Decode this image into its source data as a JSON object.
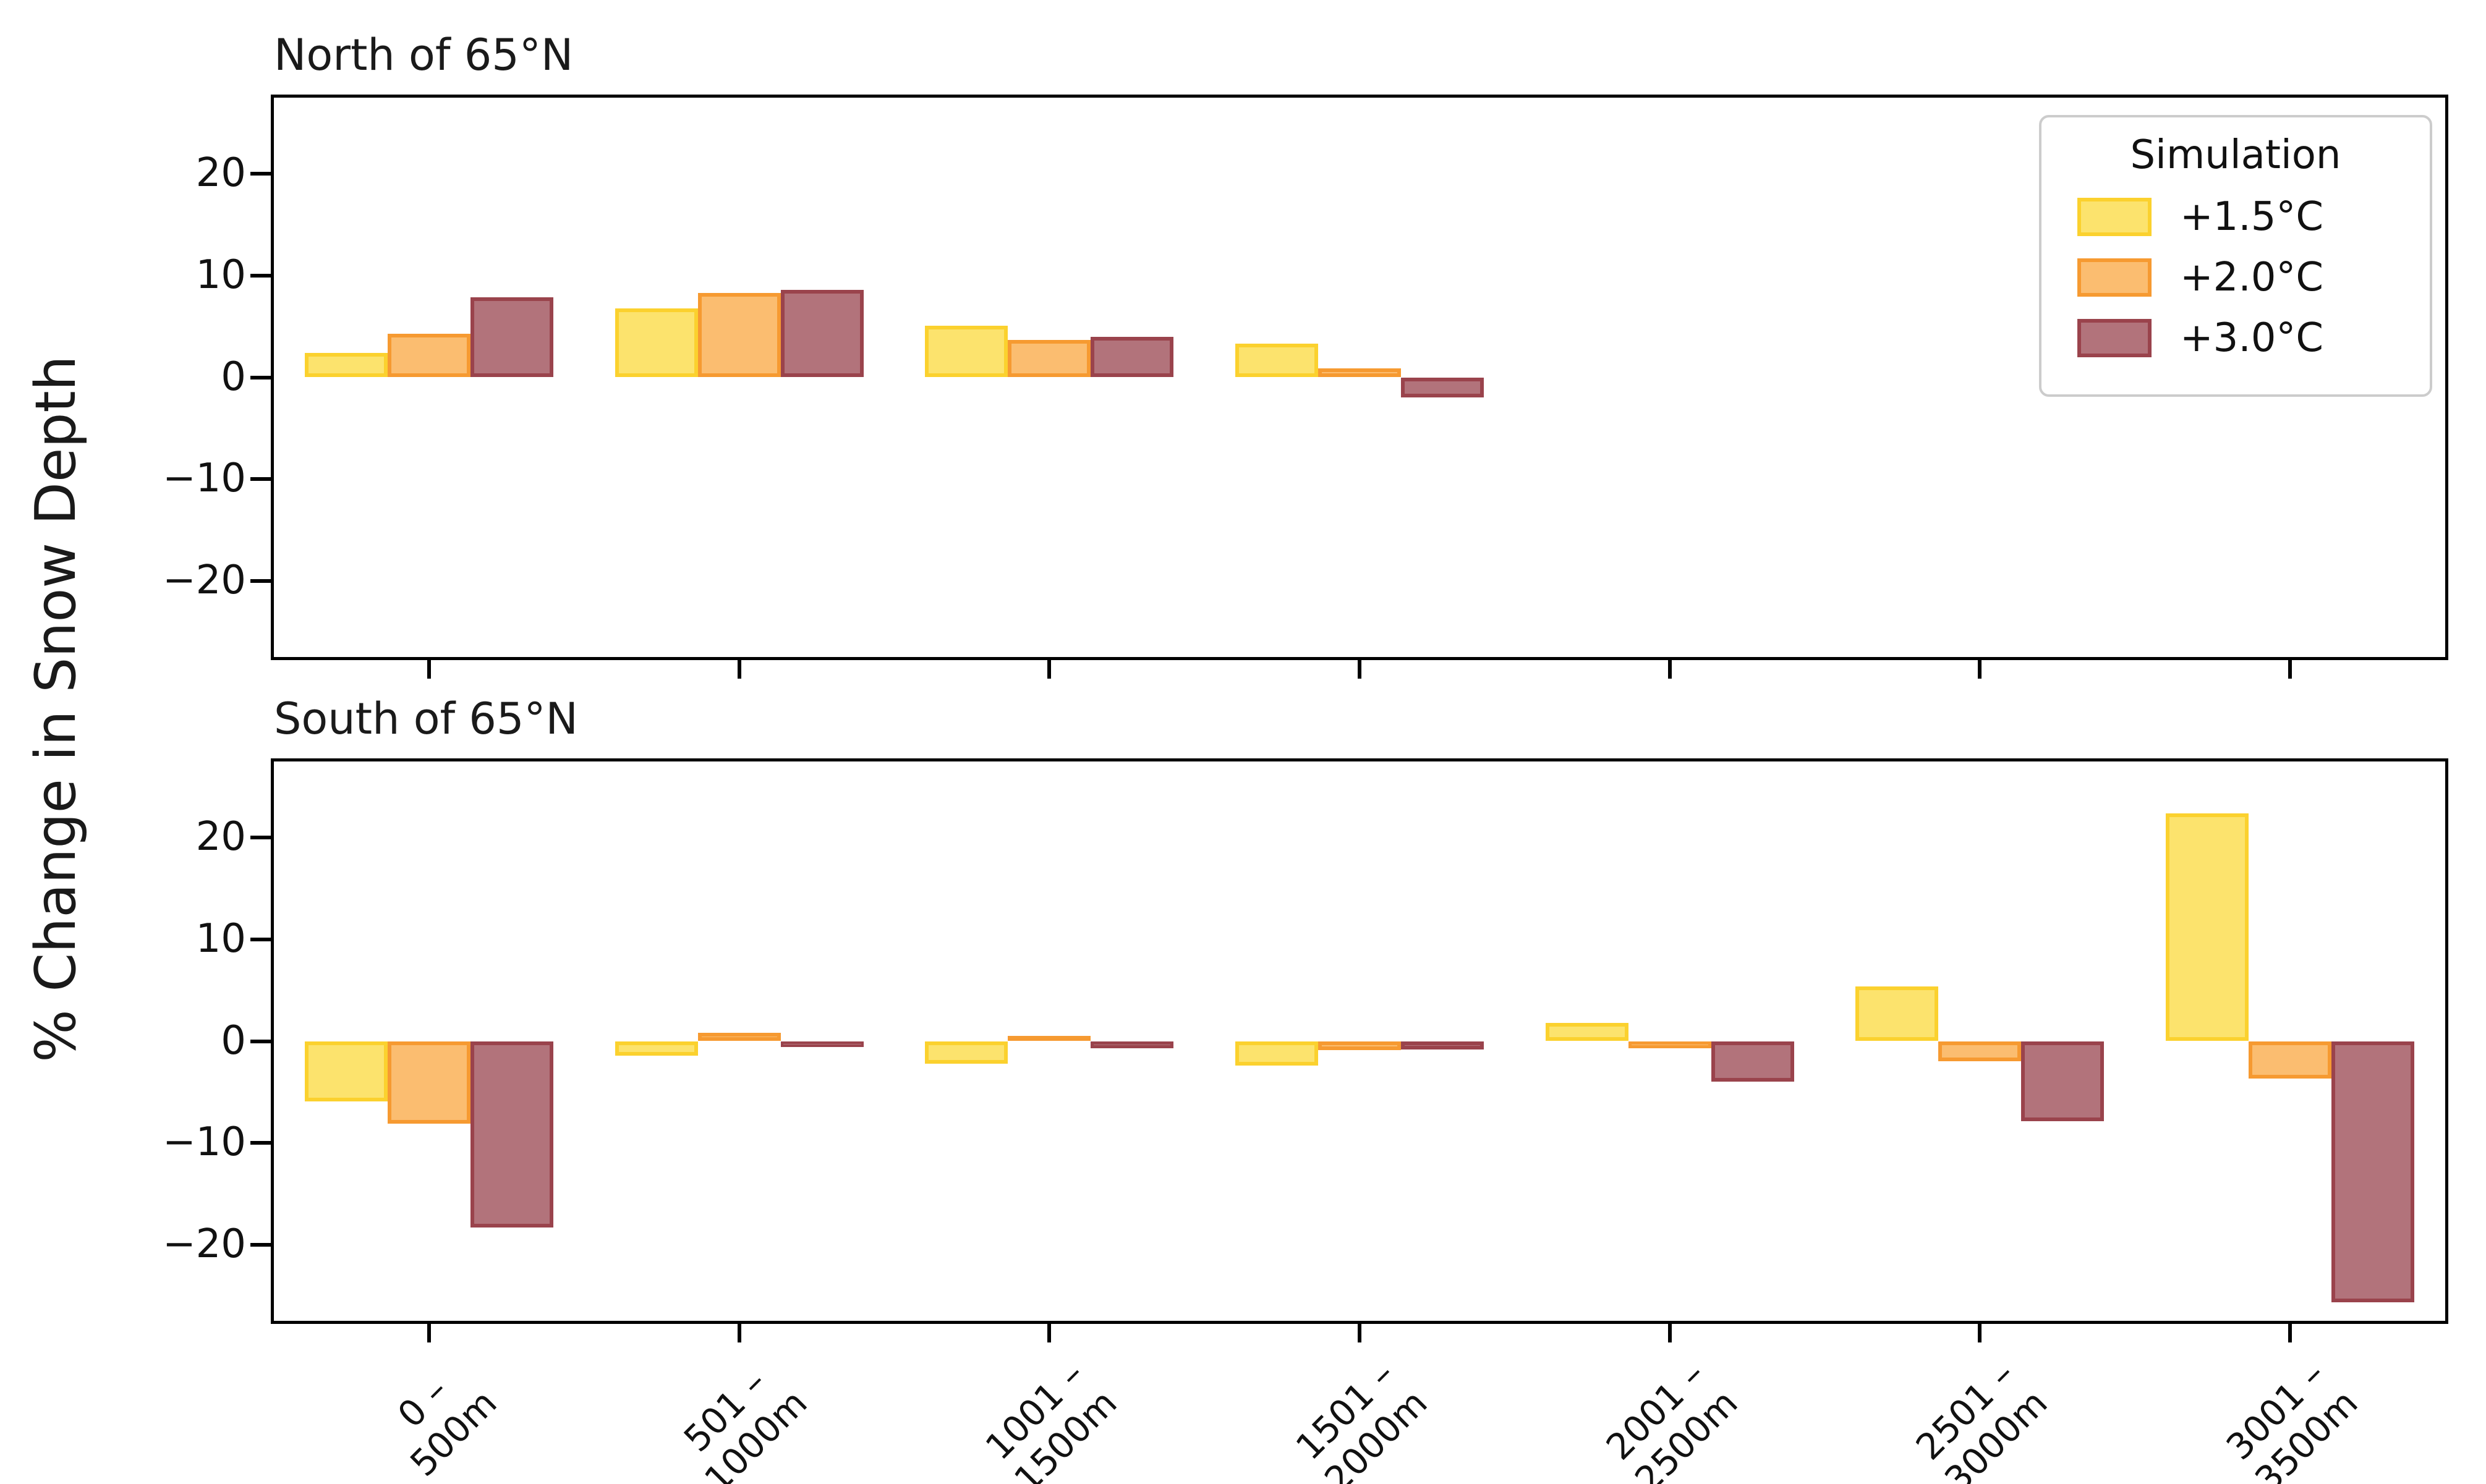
{
  "figure": {
    "ylabel": "% Change in Snow Depth"
  },
  "legend": {
    "title": "Simulation",
    "position": "upper right",
    "entries": [
      {
        "label": "+1.5°C",
        "fill": "#FCE36D",
        "edge": "#FBD12E"
      },
      {
        "label": "+2.0°C",
        "fill": "#FBBD70",
        "edge": "#F69A31"
      },
      {
        "label": "+3.0°C",
        "fill": "#B2737B",
        "edge": "#9A434C"
      }
    ]
  },
  "axes": {
    "yticks": [
      20,
      10,
      0,
      -10,
      -20
    ],
    "yticklabels": [
      "20",
      "10",
      "0",
      "−10",
      "−20"
    ],
    "xticklabels": [
      "0 –\n500m",
      "501 –\n1000m",
      "1001 –\n1500m",
      "1501 –\n2000m",
      "2001 –\n2500m",
      "2501 –\n3000m",
      "3001 –\n3500m"
    ]
  },
  "chart_data": [
    {
      "type": "bar",
      "title": "North of 65°N",
      "categories": [
        "0 – 500m",
        "501 – 1000m",
        "1001 – 1500m",
        "1501 – 2000m",
        "2001 – 2500m",
        "2501 – 3000m",
        "3001 – 3500m"
      ],
      "series": [
        {
          "name": "+1.5°C",
          "values": [
            2.4,
            6.8,
            5.1,
            3.3,
            null,
            null,
            null
          ]
        },
        {
          "name": "+2.0°C",
          "values": [
            4.3,
            8.3,
            3.7,
            0.9,
            null,
            null,
            null
          ]
        },
        {
          "name": "+3.0°C",
          "values": [
            7.9,
            8.6,
            4.0,
            -2.0,
            null,
            null,
            null
          ]
        }
      ],
      "xlabel": "",
      "ylabel": "% Change in Snow Depth",
      "ylim": [
        -27.5,
        27.5
      ],
      "yticks": [
        20,
        10,
        0,
        -10,
        -20
      ],
      "grid": false,
      "legend_position": "upper right"
    },
    {
      "type": "bar",
      "title": "South of 65°N",
      "categories": [
        "0 – 500m",
        "501 – 1000m",
        "1001 – 1500m",
        "1501 – 2000m",
        "2001 – 2500m",
        "2501 – 3000m",
        "3001 – 3500m"
      ],
      "series": [
        {
          "name": "+1.5°C",
          "values": [
            -5.9,
            -1.4,
            -2.2,
            -2.4,
            1.8,
            5.4,
            22.4
          ]
        },
        {
          "name": "+2.0°C",
          "values": [
            -8.1,
            0.8,
            0.5,
            -0.9,
            -0.7,
            -2.0,
            -3.7
          ]
        },
        {
          "name": "+3.0°C",
          "values": [
            -18.3,
            -0.6,
            -0.7,
            -0.8,
            -4.0,
            -7.9,
            -25.7
          ]
        }
      ],
      "xlabel": "",
      "ylabel": "% Change in Snow Depth",
      "ylim": [
        -27.5,
        27.5
      ],
      "yticks": [
        20,
        10,
        0,
        -10,
        -20
      ],
      "grid": false,
      "legend_position": null
    }
  ]
}
